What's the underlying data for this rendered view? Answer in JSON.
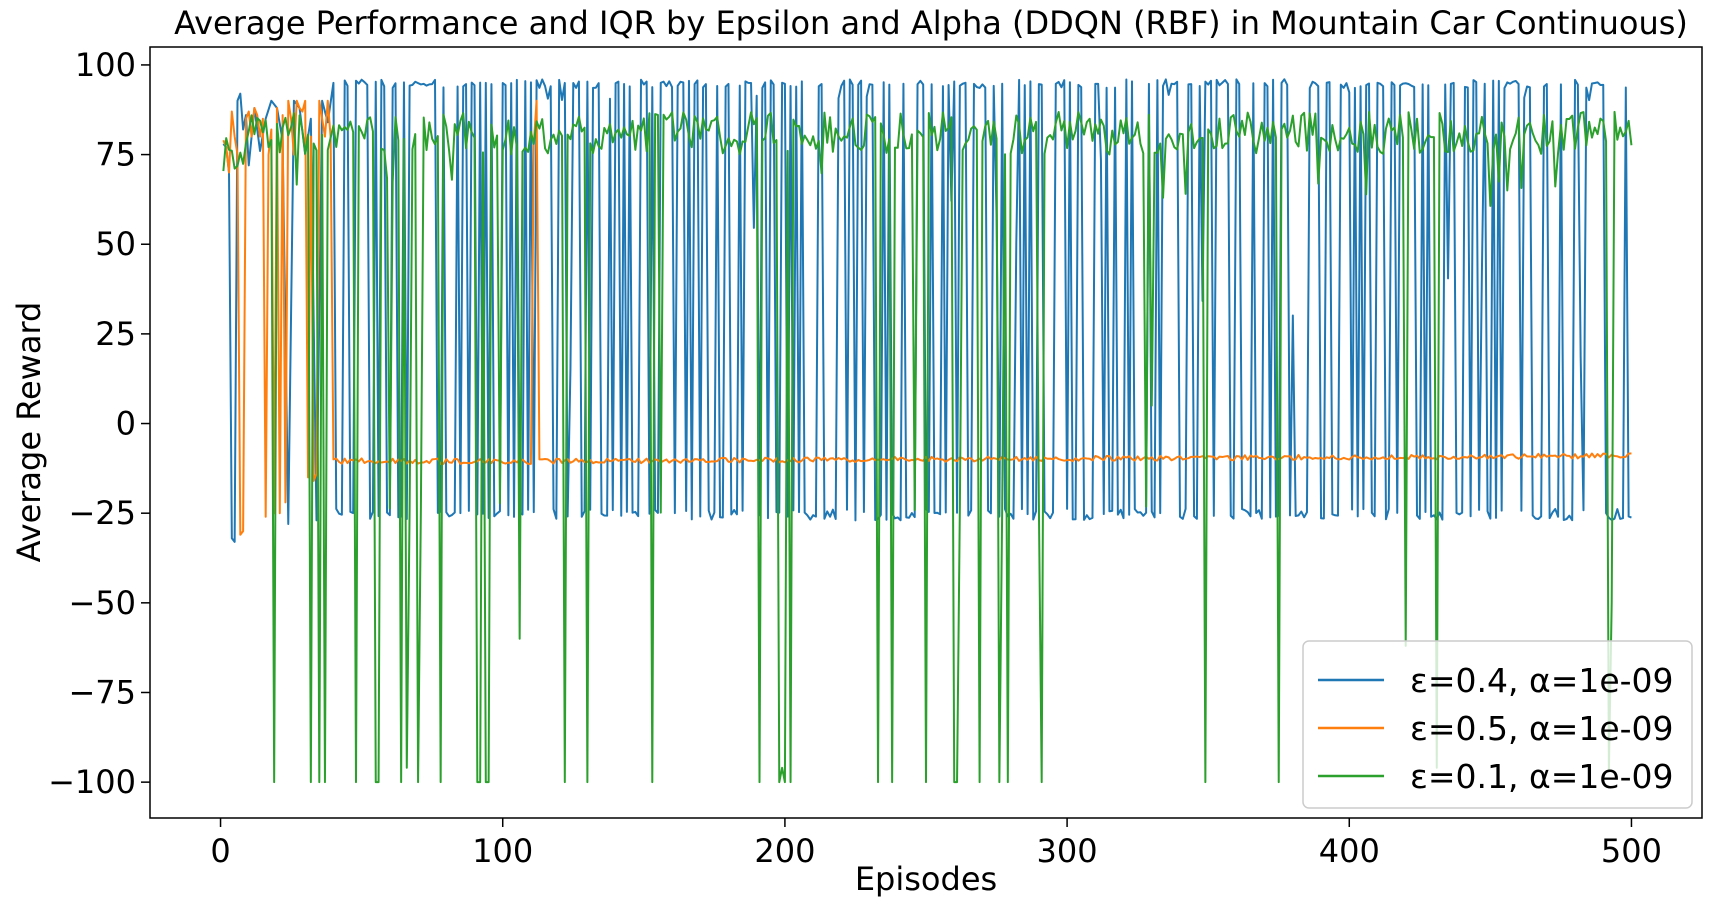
{
  "chart_data": {
    "type": "line",
    "title": "Average Performance and IQR by Epsilon and Alpha (DDQN (RBF) in Mountain Car Continuous)",
    "xlabel": "Episodes",
    "ylabel": "Average Reward",
    "xlim": [
      -25,
      525
    ],
    "ylim": [
      -110,
      105
    ],
    "x_ticks": [
      0,
      100,
      200,
      300,
      400,
      500
    ],
    "x_tick_labels": [
      "0",
      "100",
      "200",
      "300",
      "400",
      "500"
    ],
    "y_ticks": [
      100,
      75,
      50,
      25,
      0,
      -25,
      -50,
      -75,
      -100
    ],
    "y_tick_labels": [
      "100",
      "75",
      "50",
      "25",
      "0",
      "−25",
      "−50",
      "−75",
      "−100"
    ],
    "grid": false,
    "legend_position": "lower-right",
    "x": {
      "start": 1,
      "end": 500,
      "step": 1
    },
    "series": [
      {
        "name": "ε=0.4, α=1e-09",
        "color": "#1f77b4",
        "pattern": "alternating between about 95 and about -25",
        "segments": [
          {
            "x": [
              1,
              2,
              3,
              4,
              5,
              6,
              7,
              8,
              9,
              10,
              12,
              14,
              16,
              18,
              20,
              22,
              24,
              26,
              28,
              30,
              32,
              34,
              36,
              38,
              40
            ],
            "y": [
              78,
              77,
              70,
              -32,
              -33,
              90,
              92,
              82,
              86,
              72,
              88,
              76,
              85,
              90,
              88,
              79,
              -28,
              90,
              88,
              75,
              85,
              -27,
              90,
              84,
              95
            ]
          }
        ],
        "high_values": [
          95,
          96
        ],
        "low_values": [
          -25,
          -26,
          -27
        ],
        "high_probability": 0.52
      },
      {
        "name": "ε=0.5, α=1e-09",
        "color": "#ff7f0e",
        "segments": [
          {
            "x": [
              1,
              2,
              3,
              4,
              5,
              6,
              7,
              8,
              9,
              10,
              11,
              12,
              13,
              14,
              15,
              16,
              17,
              18,
              19,
              20,
              21,
              22,
              23,
              24,
              25,
              26,
              27,
              28,
              29,
              30,
              31,
              32,
              33,
              34,
              35,
              36,
              37,
              38,
              39,
              40
            ],
            "y": [
              79,
              77,
              70,
              87,
              80,
              75,
              -31,
              -30,
              85,
              87,
              80,
              88,
              86,
              80,
              85,
              -26,
              75,
              82,
              -25,
              88,
              -25,
              86,
              -22,
              90,
              85,
              75,
              90,
              88,
              87,
              90,
              -15,
              80,
              -16,
              -14,
              90,
              85,
              80,
              90,
              80,
              -10
            ]
          },
          {
            "x_range": [
              40,
              110
            ],
            "y_mean": -10.5,
            "y_jitter": 0.8
          },
          {
            "x": [
              110,
              111,
              112,
              113,
              114
            ],
            "y": [
              -10,
              78,
              90,
              -10,
              -10
            ]
          },
          {
            "x_range": [
              114,
              500
            ],
            "y_start": -10.5,
            "y_end": -9.0,
            "y_jitter": 0.7
          }
        ]
      },
      {
        "name": "ε=0.1, α=1e-09",
        "color": "#2ca02c",
        "pattern": "mostly between 75 and 87 with sharp drops toward -100",
        "baseline_low": 75,
        "baseline_high": 87,
        "drops_to_minus_100": [
          19,
          32,
          35,
          37,
          48,
          55,
          56,
          64,
          70,
          78,
          91,
          92,
          94,
          95,
          122,
          130,
          153,
          191,
          198,
          200,
          202,
          233,
          238,
          250,
          260,
          261,
          269,
          276,
          279,
          291,
          349,
          375
        ],
        "drops_to_minus_25": [
          60,
          67,
          71,
          95,
          99,
          156,
          246,
          262,
          277,
          290,
          328
        ],
        "drops_mid": [
          {
            "x": 66,
            "y": -96
          },
          {
            "x": 106,
            "y": -60
          },
          {
            "x": 199,
            "y": -96
          },
          {
            "x": 420,
            "y": -62
          },
          {
            "x": 431,
            "y": -96
          },
          {
            "x": 492,
            "y": -97
          },
          {
            "x": 493,
            "y": -50
          },
          {
            "x": 330,
            "y": 5
          }
        ]
      }
    ]
  }
}
